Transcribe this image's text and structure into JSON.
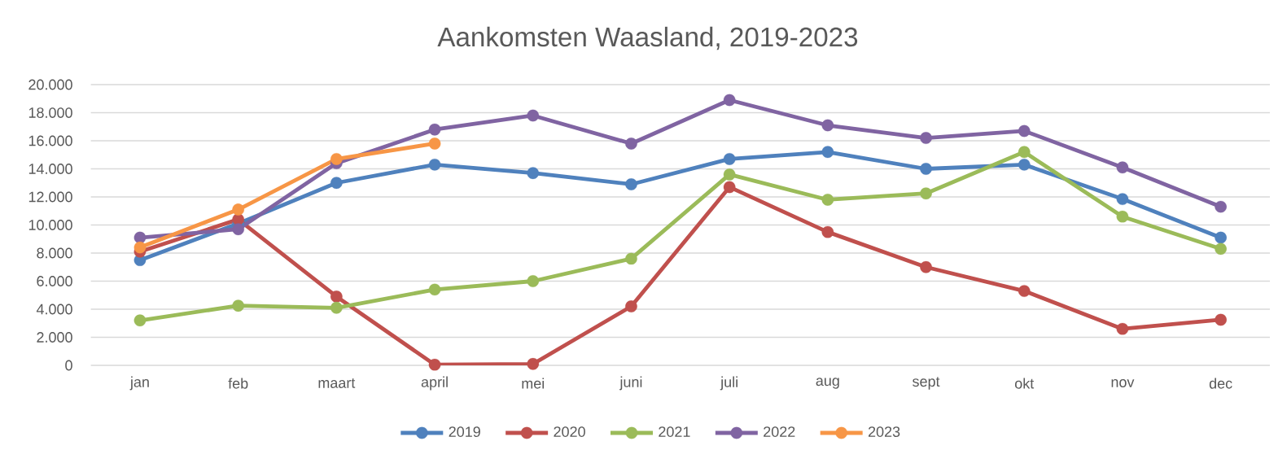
{
  "chart_data": {
    "type": "line",
    "title": "Aankomsten Waasland, 2019-2023",
    "categories": [
      "jan",
      "feb",
      "maart",
      "april",
      "mei",
      "juni",
      "juli",
      "aug",
      "sept",
      "okt",
      "nov",
      "dec"
    ],
    "series": [
      {
        "name": "2019",
        "color": "#4f81bd",
        "values": [
          7500,
          10100,
          13000,
          14300,
          13700,
          12900,
          14700,
          15200,
          14000,
          14300,
          11850,
          9100
        ]
      },
      {
        "name": "2020",
        "color": "#c0504d",
        "values": [
          8100,
          10400,
          4900,
          50,
          100,
          4200,
          12700,
          9500,
          7000,
          5300,
          2600,
          3250
        ]
      },
      {
        "name": "2021",
        "color": "#9bbb59",
        "values": [
          3200,
          4250,
          4100,
          5400,
          6000,
          7600,
          13600,
          11800,
          12250,
          15200,
          10600,
          8300
        ]
      },
      {
        "name": "2022",
        "color": "#8064a2",
        "values": [
          9100,
          9700,
          14400,
          16800,
          17800,
          15800,
          18900,
          17100,
          16200,
          16700,
          14100,
          11300
        ]
      },
      {
        "name": "2023",
        "color": "#f79646",
        "values": [
          8400,
          11100,
          14700,
          15800,
          null,
          null,
          null,
          null,
          null,
          null,
          null,
          null
        ]
      }
    ],
    "ylim": [
      0,
      20000
    ],
    "yticks": [
      0,
      {
        "value": 2000,
        "label": "2.000"
      },
      {
        "value": 4000,
        "label": "4.000"
      },
      {
        "value": 6000,
        "label": "6.000"
      },
      {
        "value": 8000,
        "label": "8.000"
      },
      {
        "value": 10000,
        "label": "10.000"
      },
      {
        "value": 12000,
        "label": "12.000"
      },
      {
        "value": 14000,
        "label": "14.000"
      },
      {
        "value": 16000,
        "label": "16.000"
      },
      {
        "value": 18000,
        "label": "18.000"
      },
      {
        "value": 20000,
        "label": "20.000"
      }
    ],
    "grid": "y",
    "legend": "bottom",
    "marker": "circle",
    "line_style": "solid"
  }
}
